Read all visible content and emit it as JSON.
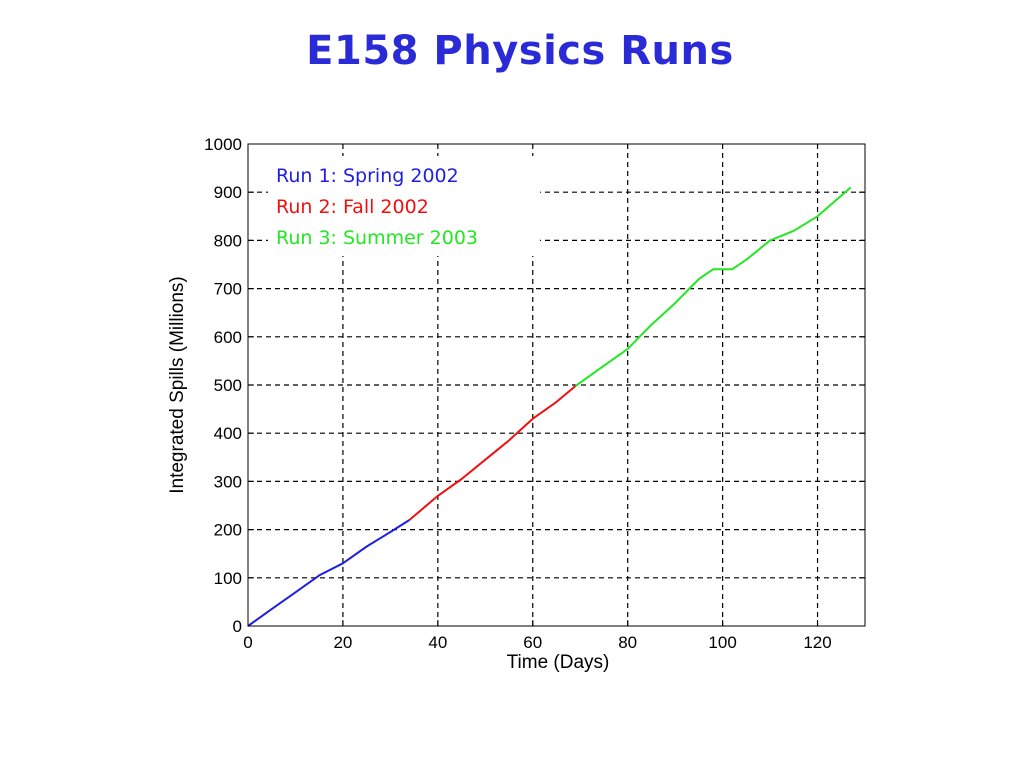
{
  "slide": {
    "title": "E158 Physics Runs"
  },
  "chart_data": {
    "type": "line",
    "title": "",
    "xlabel": "Time (Days)",
    "ylabel": "Integrated Spills (Millions)",
    "xlim": [
      0,
      130
    ],
    "ylim": [
      0,
      1000
    ],
    "xticks": [
      0,
      20,
      40,
      60,
      80,
      100,
      120
    ],
    "yticks": [
      0,
      100,
      200,
      300,
      400,
      500,
      600,
      700,
      800,
      900,
      1000
    ],
    "grid": true,
    "legend_position": "top-left",
    "series": [
      {
        "name": "Run 1:  Spring 2002",
        "color": "#1f1fe0",
        "x": [
          0,
          5,
          10,
          15,
          20,
          25,
          30,
          34
        ],
        "y": [
          0,
          35,
          70,
          105,
          130,
          165,
          195,
          220
        ]
      },
      {
        "name": "Run 2:  Fall 2002",
        "color": "#f01010",
        "x": [
          34,
          40,
          45,
          50,
          55,
          60,
          65,
          69
        ],
        "y": [
          220,
          270,
          305,
          345,
          385,
          430,
          465,
          498
        ]
      },
      {
        "name": "Run 3:  Summer 2003",
        "color": "#22e822",
        "x": [
          69,
          75,
          80,
          85,
          90,
          95,
          98,
          102,
          105,
          110,
          115,
          120,
          127
        ],
        "y": [
          498,
          540,
          575,
          625,
          670,
          720,
          740,
          740,
          760,
          800,
          820,
          850,
          910
        ]
      }
    ]
  }
}
